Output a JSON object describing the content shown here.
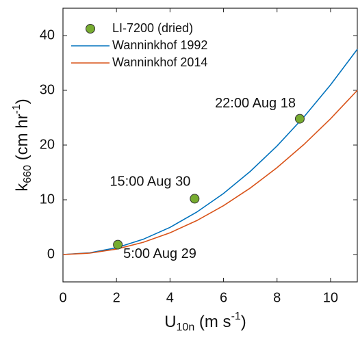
{
  "chart_data": {
    "type": "line",
    "xlabel": [
      "U",
      "10n",
      " (m s",
      "-1",
      ")"
    ],
    "ylabel": [
      "k",
      "660",
      " (cm hr",
      "-1",
      ")"
    ],
    "xlim": [
      0,
      11
    ],
    "xticks": [
      0,
      2,
      4,
      6,
      8,
      10
    ],
    "ylim": [
      -5,
      45
    ],
    "yticks": [
      0,
      10,
      20,
      30,
      40
    ],
    "legend": "upper-left",
    "series": [
      {
        "name": "LI-7200 (dried)",
        "type": "scatter",
        "color": "#77ac30",
        "x": [
          2.05,
          4.92,
          8.85
        ],
        "values": [
          1.8,
          10.2,
          24.8
        ]
      },
      {
        "name": "Wanninkhof 1992",
        "type": "line",
        "color": "#0072bd",
        "x": [
          0,
          1,
          2,
          3,
          4,
          5,
          6,
          7,
          8,
          9,
          10,
          11
        ],
        "values": [
          0,
          0.31,
          1.24,
          2.79,
          4.96,
          7.75,
          11.16,
          15.19,
          19.84,
          25.11,
          31.0,
          37.5
        ]
      },
      {
        "name": "Wanninkhof 2014",
        "type": "line",
        "color": "#d95319",
        "x": [
          0,
          1,
          2,
          3,
          4,
          5,
          6,
          7,
          8,
          9,
          10,
          11
        ],
        "values": [
          0,
          0.25,
          0.99,
          2.23,
          3.97,
          6.2,
          8.93,
          12.15,
          15.87,
          20.09,
          24.8,
          30.0
        ]
      }
    ],
    "annotations": [
      "5:00 Aug 29",
      "15:00 Aug 30",
      "22:00 Aug 18"
    ]
  }
}
